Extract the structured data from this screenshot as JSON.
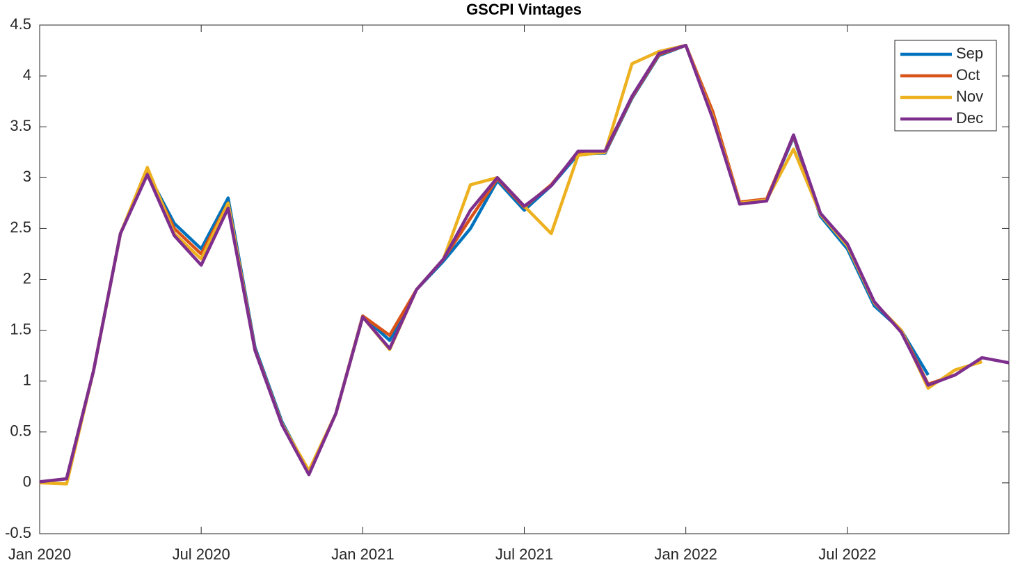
{
  "chart_data": {
    "type": "line",
    "title": "GSCPI Vintages",
    "x": [
      "2020-01",
      "2020-02",
      "2020-03",
      "2020-04",
      "2020-05",
      "2020-06",
      "2020-07",
      "2020-08",
      "2020-09",
      "2020-10",
      "2020-11",
      "2020-12",
      "2021-01",
      "2021-02",
      "2021-03",
      "2021-04",
      "2021-05",
      "2021-06",
      "2021-07",
      "2021-08",
      "2021-09",
      "2021-10",
      "2021-11",
      "2021-12",
      "2022-01",
      "2022-02",
      "2022-03",
      "2022-04",
      "2022-05",
      "2022-06",
      "2022-07",
      "2022-08",
      "2022-09",
      "2022-10",
      "2022-11",
      "2022-12",
      "2023-01"
    ],
    "series": [
      {
        "name": "Sep",
        "color": "#0072BD",
        "values": [
          0.01,
          0.04,
          1.1,
          2.45,
          3.05,
          2.55,
          2.3,
          2.8,
          1.33,
          0.6,
          0.1,
          0.68,
          1.64,
          1.4,
          1.9,
          2.18,
          2.5,
          2.97,
          2.68,
          2.92,
          3.23,
          3.24,
          3.78,
          4.2,
          4.3,
          3.6,
          2.75,
          2.78,
          3.4,
          2.62,
          2.3,
          1.74,
          1.5,
          1.06,
          null,
          null,
          null
        ]
      },
      {
        "name": "Oct",
        "color": "#D95319",
        "values": [
          0.01,
          0.04,
          1.1,
          2.45,
          3.05,
          2.5,
          2.25,
          2.75,
          1.31,
          0.58,
          0.09,
          0.68,
          1.64,
          1.45,
          1.9,
          2.2,
          2.6,
          2.99,
          2.71,
          2.93,
          3.25,
          3.25,
          3.79,
          4.21,
          4.3,
          3.65,
          2.76,
          2.79,
          3.41,
          2.64,
          2.34,
          1.77,
          1.5,
          0.97,
          1.06,
          null,
          null
        ]
      },
      {
        "name": "Nov",
        "color": "#EDB120",
        "values": [
          0.0,
          -0.01,
          1.1,
          2.45,
          3.1,
          2.45,
          2.2,
          2.75,
          1.3,
          0.58,
          0.12,
          0.68,
          1.63,
          1.31,
          1.9,
          2.2,
          2.93,
          3.0,
          2.72,
          2.45,
          3.22,
          3.25,
          4.12,
          4.24,
          4.3,
          3.6,
          2.75,
          2.78,
          3.28,
          2.64,
          2.33,
          1.77,
          1.5,
          0.93,
          1.11,
          1.19,
          null
        ]
      },
      {
        "name": "Dec",
        "color": "#7E2F8E",
        "values": [
          0.01,
          0.04,
          1.1,
          2.45,
          3.03,
          2.43,
          2.14,
          2.7,
          1.3,
          0.57,
          0.08,
          0.68,
          1.63,
          1.32,
          1.9,
          2.2,
          2.68,
          3.0,
          2.72,
          2.92,
          3.26,
          3.26,
          3.8,
          4.22,
          4.3,
          3.58,
          2.74,
          2.77,
          3.42,
          2.65,
          2.35,
          1.78,
          1.48,
          0.96,
          1.06,
          1.23,
          1.18
        ]
      }
    ],
    "xlim": [
      "2020-01",
      "2023-01"
    ],
    "xticks": [
      {
        "value": "2020-01",
        "label": "Jan 2020"
      },
      {
        "value": "2020-07",
        "label": "Jul 2020"
      },
      {
        "value": "2021-01",
        "label": "Jan 2021"
      },
      {
        "value": "2021-07",
        "label": "Jul 2021"
      },
      {
        "value": "2022-01",
        "label": "Jan 2022"
      },
      {
        "value": "2022-07",
        "label": "Jul 2022"
      }
    ],
    "ylim": [
      -0.5,
      4.5
    ],
    "yticks": [
      -0.5,
      0,
      0.5,
      1,
      1.5,
      2,
      2.5,
      3,
      3.5,
      4,
      4.5
    ],
    "grid": false,
    "legend": "northeast"
  }
}
